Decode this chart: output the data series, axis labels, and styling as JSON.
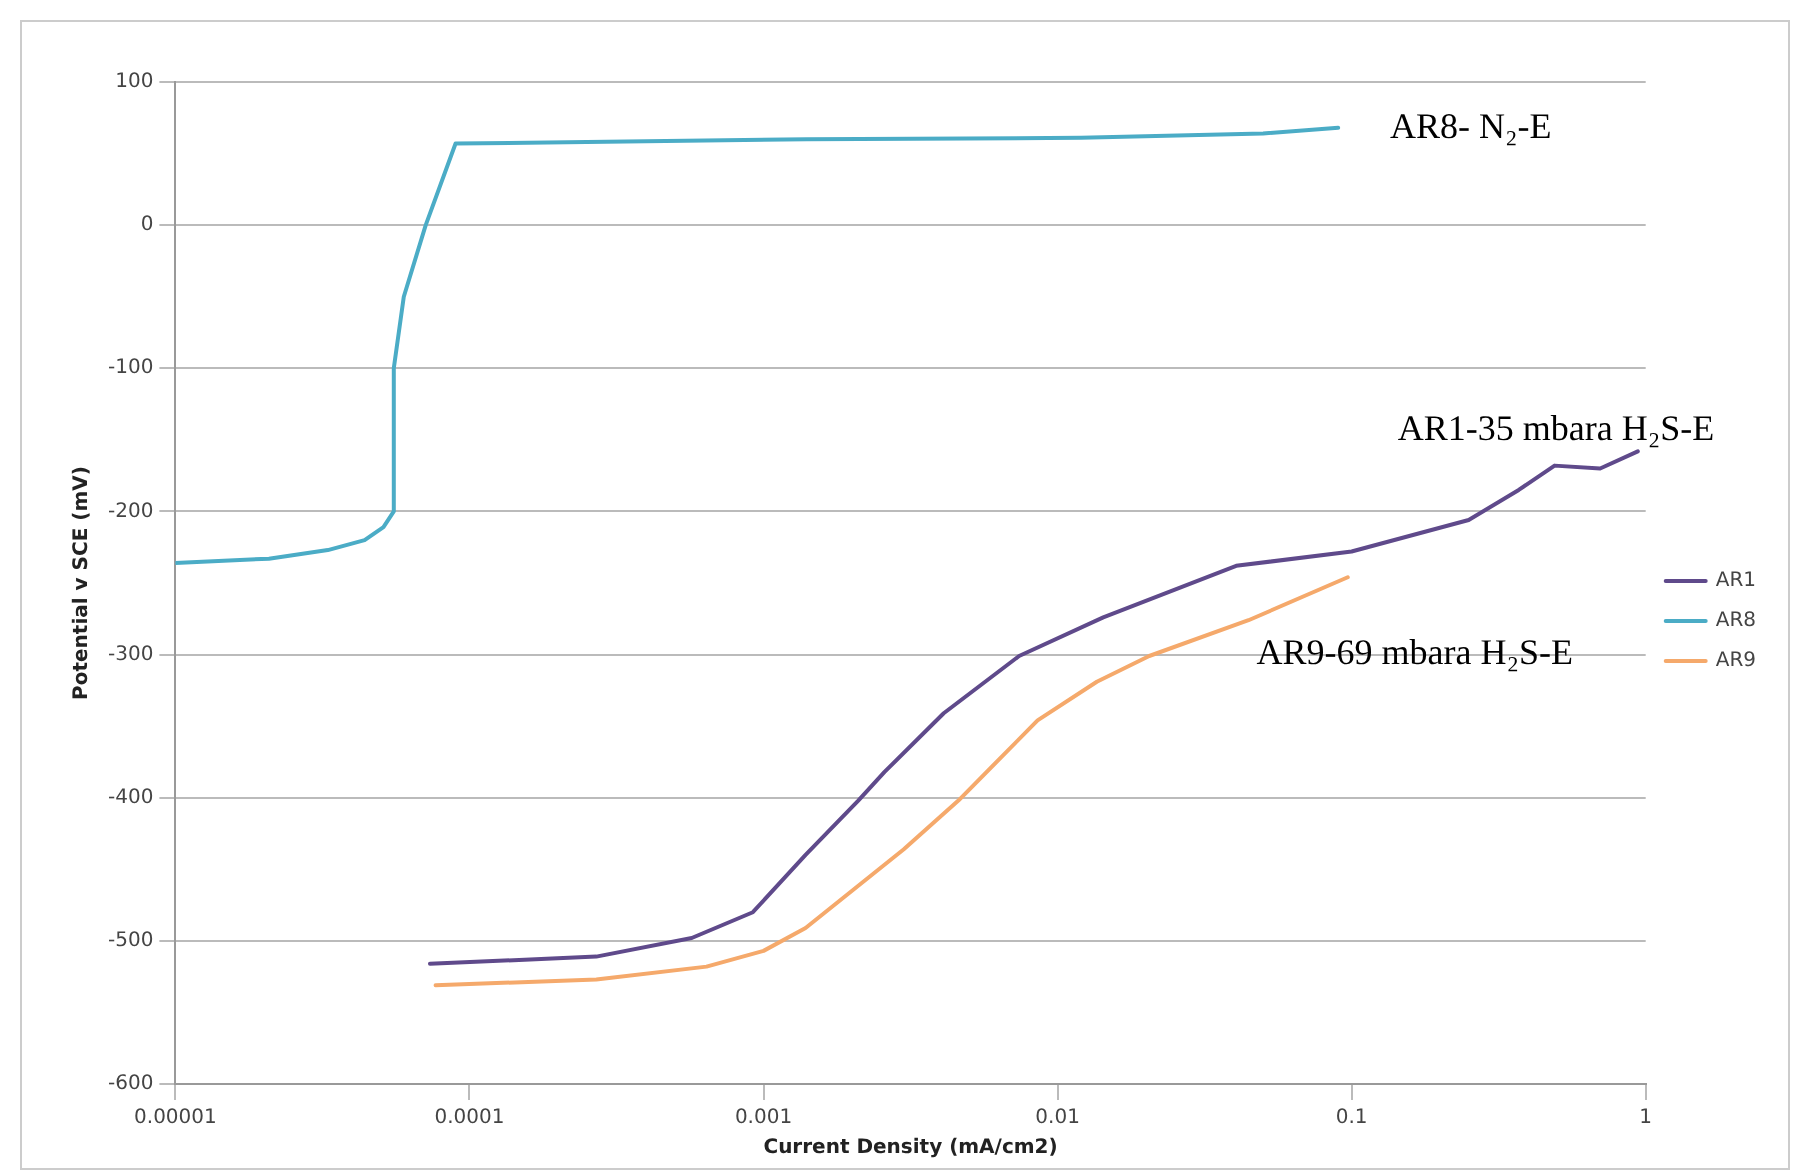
{
  "chart_data": {
    "type": "line",
    "xlabel": "Current Density (mA/cm2)",
    "ylabel": "Potential v SCE (mV)",
    "log": "x",
    "xlim": [
      1e-05,
      1
    ],
    "xticks": [
      {
        "value": 1e-05,
        "label": "0.00001"
      },
      0.0001,
      0.001,
      0.01,
      0.1,
      1
    ],
    "ylim": [
      -600,
      100
    ],
    "yticks": [
      -600,
      -500,
      -400,
      -300,
      -200,
      -100,
      0,
      100
    ],
    "grid": "y",
    "legend": "right",
    "marker": "none",
    "line_style": "solid",
    "series": [
      {
        "name": "AR1",
        "color": "#5f4a8b",
        "x": [
          7.34e-05,
          0.00027,
          0.00057,
          0.00092,
          0.00139,
          0.0021,
          0.00258,
          0.0041,
          0.0074,
          0.0143,
          0.0405,
          0.1,
          0.25,
          0.37,
          0.49,
          0.7,
          0.94
        ],
        "values": [
          -516,
          -511,
          -498,
          -480,
          -440,
          -402,
          -382,
          -341,
          -301,
          -274,
          -238,
          -228,
          -206,
          -185,
          -168,
          -170,
          -158
        ]
      },
      {
        "name": "AR8",
        "color": "#4bacc6",
        "x": [
          1e-05,
          2.08e-05,
          3.3e-05,
          4.4e-05,
          5.1e-05,
          5.53e-05,
          5.53e-05,
          5.98e-05,
          7.1e-05,
          8.97e-05,
          0.0014,
          0.012,
          0.05,
          0.09
        ],
        "values": [
          -236,
          -233,
          -227,
          -220,
          -211,
          -200,
          -100,
          -50,
          0,
          57,
          60,
          61,
          64,
          68
        ]
      },
      {
        "name": "AR9",
        "color": "#f5a96b",
        "x": [
          7.67e-05,
          0.00027,
          0.00064,
          0.001,
          0.00139,
          0.003,
          0.0046,
          0.00855,
          0.0136,
          0.0205,
          0.0446,
          0.097
        ],
        "values": [
          -531,
          -527,
          -518,
          -507,
          -491,
          -436,
          -402,
          -346,
          -319,
          -301,
          -276,
          -246
        ]
      }
    ],
    "annotations": [
      "AR8- N₂-E",
      "AR1-35 mbara H₂S-E",
      "AR9-69 mbara H₂S-E"
    ]
  }
}
